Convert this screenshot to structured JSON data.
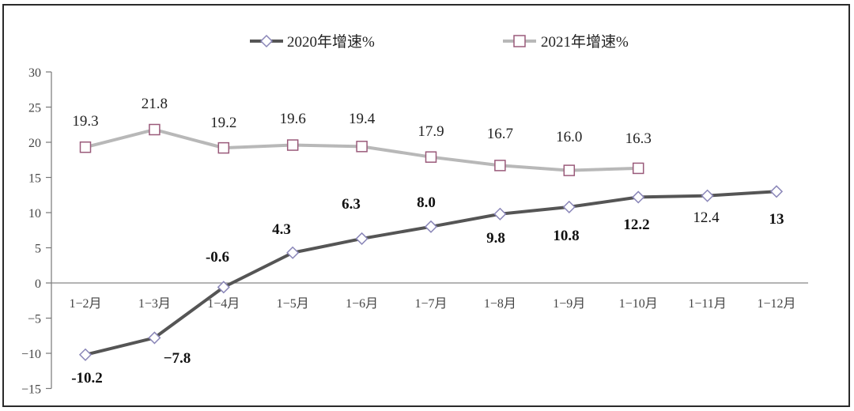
{
  "chart_data": {
    "type": "line",
    "title": "",
    "xlabel": "",
    "ylabel": "",
    "ylim": [
      -15,
      30
    ],
    "yticks": [
      30,
      25,
      20,
      15,
      10,
      5,
      0,
      -5,
      -10,
      -15
    ],
    "ytick_labels": [
      "30",
      "25",
      "20",
      "15",
      "10",
      "5",
      "0",
      "−5",
      "−10",
      "−15"
    ],
    "grid": false,
    "legend_position": "top",
    "categories": [
      "1−2月",
      "1−3月",
      "1−4月",
      "1−5月",
      "1−6月",
      "1−7月",
      "1−8月",
      "1−9月",
      "1−10月",
      "1−11月",
      "1−12月"
    ],
    "series": [
      {
        "name": "2020年增速%",
        "color": "#555555",
        "marker": "diamond",
        "marker_color": "#8a86b8",
        "values": [
          -10.2,
          -7.8,
          -0.6,
          4.3,
          6.3,
          8.0,
          9.8,
          10.8,
          12.2,
          12.4,
          13
        ],
        "data_labels": [
          "-10.2",
          "−7.8",
          "-0.6",
          "4.3",
          "6.3",
          "8.0",
          "9.8",
          "10.8",
          "12.2",
          "12.4",
          "13"
        ]
      },
      {
        "name": "2021年增速%",
        "color": "#b8b8b8",
        "marker": "square",
        "marker_color": "#9a5a7a",
        "values": [
          19.3,
          21.8,
          19.2,
          19.6,
          19.4,
          17.9,
          16.7,
          16.0,
          16.3
        ],
        "data_labels": [
          "19.3",
          "21.8",
          "19.2",
          "19.6",
          "19.4",
          "17.9",
          "16.7",
          "16.0",
          "16.3"
        ]
      }
    ]
  },
  "legend": {
    "items": [
      {
        "label": "2020年增速%",
        "icon": "diamond-line-icon"
      },
      {
        "label": "2021年增速%",
        "icon": "square-line-icon"
      }
    ]
  }
}
